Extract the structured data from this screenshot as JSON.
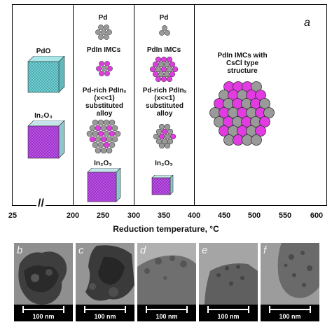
{
  "figure": {
    "panel_label": "a",
    "axis": {
      "title": "Reduction temperature, °C",
      "ticks": [
        "25",
        "200",
        "250",
        "300",
        "350",
        "400",
        "450",
        "500",
        "550",
        "600"
      ],
      "break_mark": "//"
    },
    "stages": {
      "s25": {
        "top": "PdO",
        "bottom": "In₂O₃"
      },
      "s200": {
        "pd": "Pd",
        "imc": "PdIn IMCs",
        "alloy": "Pd-rich PdInₓ (x<<1) substituted alloy",
        "oxide": "In₂O₃"
      },
      "s300": {
        "pd": "Pd",
        "imc": "PdIn IMCs",
        "alloy": "Pd-rich PdInₓ (x<<1) substituted alloy",
        "oxide": "In₂O₃"
      },
      "s400": {
        "label": "PdIn IMCs with CsCl type structure"
      }
    },
    "colors": {
      "pd_atom": "#9a9a9a",
      "in_atom": "#e23be2",
      "pdo_block": "#7ed6d9",
      "in2o3_block": "#c455ee"
    }
  },
  "tem_panels": [
    {
      "letter": "b",
      "scale": "100 nm"
    },
    {
      "letter": "c",
      "scale": "100 nm"
    },
    {
      "letter": "d",
      "scale": "100 nm"
    },
    {
      "letter": "e",
      "scale": "100 nm"
    },
    {
      "letter": "f",
      "scale": "100 nm"
    }
  ]
}
